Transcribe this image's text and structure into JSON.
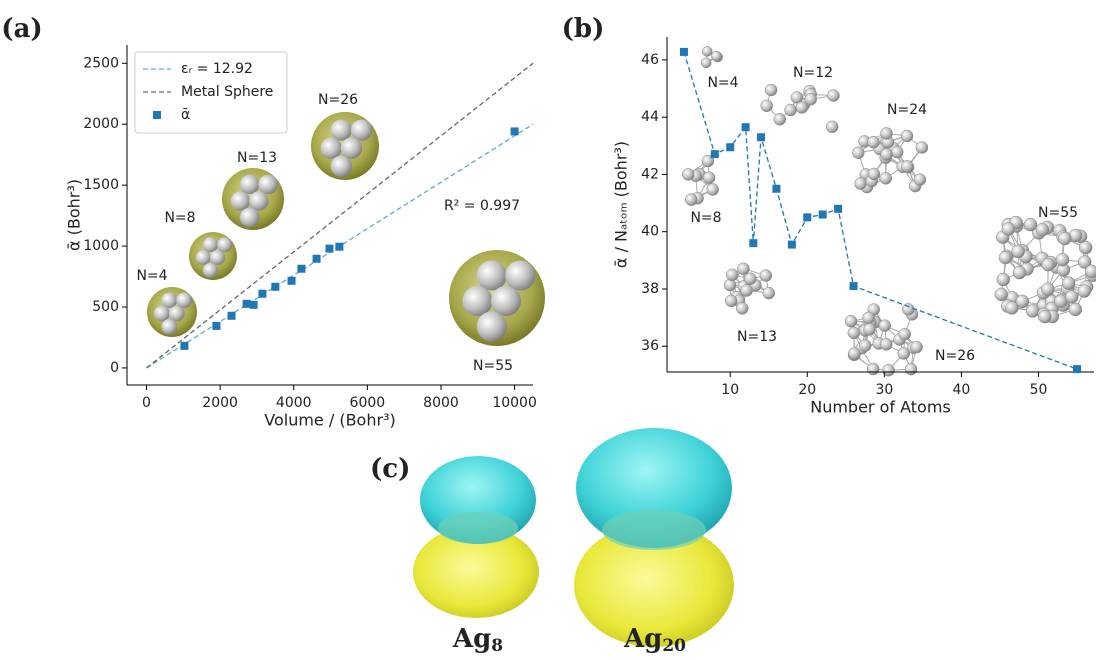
{
  "chart_data": [
    {
      "type": "line",
      "panel_label": "(a)",
      "xlabel": "Volume / (Bohr³)",
      "ylabel": "ᾱ (Bohr³)",
      "xlim": [
        -530,
        10500
      ],
      "ylim": [
        -140,
        2650
      ],
      "xticks": [
        0,
        2000,
        4000,
        6000,
        8000,
        10000
      ],
      "yticks": [
        0,
        500,
        1000,
        1500,
        2000,
        2500
      ],
      "legend": "upper left",
      "series": [
        {
          "name": "εᵣ = 12.92",
          "color": "#5fa8d3",
          "style": "dashed",
          "x": [
            0,
            10500
          ],
          "values": [
            0,
            2000
          ]
        },
        {
          "name": "Metal Sphere",
          "color": "#666666",
          "style": "dashed",
          "x": [
            0,
            10500
          ],
          "values": [
            0,
            2500
          ]
        },
        {
          "name": "ᾱ",
          "color": "#1f77b4",
          "marker": "square",
          "x": [
            1030,
            1900,
            2310,
            2720,
            2910,
            3150,
            3500,
            3940,
            4210,
            4620,
            4970,
            5240,
            10000
          ],
          "values": [
            181,
            345,
            428,
            526,
            518,
            609,
            666,
            715,
            814,
            896,
            979,
            995,
            1941
          ]
        }
      ],
      "annotations": [
        "N=4",
        "N=8",
        "N=13",
        "N=26",
        "N=55",
        "R² = 0.997"
      ]
    },
    {
      "type": "line",
      "panel_label": "(b)",
      "xlabel": "Number of Atoms",
      "ylabel": "ᾱ / Nₐₜₒₘ (Bohr³)",
      "xlim": [
        1.8,
        57.2
      ],
      "ylim": [
        35.1,
        46.8
      ],
      "xticks": [
        10,
        20,
        30,
        40,
        50
      ],
      "yticks": [
        36,
        38,
        40,
        42,
        44,
        46
      ],
      "series": [
        {
          "color": "#1f77b4",
          "style": "dashed",
          "marker": "square",
          "x": [
            4,
            8,
            10,
            12,
            13,
            14,
            16,
            18,
            20,
            22,
            24,
            26,
            55
          ],
          "values": [
            46.28,
            42.71,
            42.95,
            43.65,
            39.6,
            43.3,
            41.5,
            39.55,
            40.5,
            40.6,
            40.8,
            38.1,
            35.2
          ]
        }
      ],
      "annotations": [
        "N=4",
        "N=12",
        "N=24",
        "N=8",
        "N=55",
        "N=13",
        "N=26"
      ]
    }
  ],
  "panel_c": {
    "label": "(c)",
    "items": [
      {
        "text": "Ag",
        "sub": "8"
      },
      {
        "text": "Ag",
        "sub": "20"
      }
    ]
  }
}
